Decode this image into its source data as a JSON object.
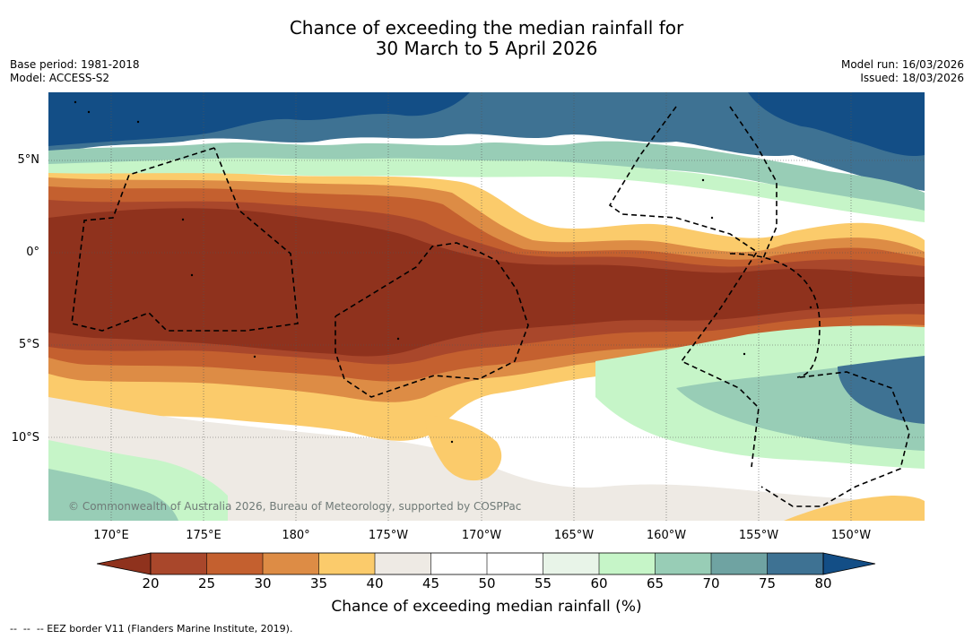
{
  "title_line1": "Chance of exceeding the median rainfall for",
  "title_line2": "30 March to 5 April 2026",
  "base_period": "Base period: 1981-2018",
  "model": "Model: ACCESS-S2",
  "model_run": "Model run: 16/03/2026",
  "issued": "Issued: 18/03/2026",
  "lat_labels": [
    "5°N",
    "0°",
    "5°S",
    "10°S"
  ],
  "lon_labels": [
    "170°E",
    "175°E",
    "180°",
    "175°W",
    "170°W",
    "165°W",
    "160°W",
    "155°W",
    "150°W"
  ],
  "credit": "© Commonwealth of Australia 2026, Bureau of Meteorology, supported by COSPPac",
  "colorbar": {
    "ticks": [
      "20",
      "25",
      "30",
      "35",
      "40",
      "45",
      "50",
      "55",
      "60",
      "65",
      "70",
      "75",
      "80"
    ],
    "colors": {
      "below_20": "#8f321d",
      "b20_25": "#a9472b",
      "b25_30": "#c4602f",
      "b30_35": "#dd8c45",
      "b35_40": "#fbcb6b",
      "b40_45": "#eeeae4",
      "b45_50": "#ffffff",
      "b50_55": "#ffffff",
      "b55_60": "#e8f4e8",
      "b60_65": "#c6f5c8",
      "b65_70": "#98cdb6",
      "b70_75": "#6fa3a2",
      "b75_80": "#3e7293",
      "above_80": "#134e86"
    },
    "label": "Chance of exceeding median rainfall (%)"
  },
  "footnote": "--  --  -- EEZ border V11 (Flanders Marine Institute, 2019)."
}
